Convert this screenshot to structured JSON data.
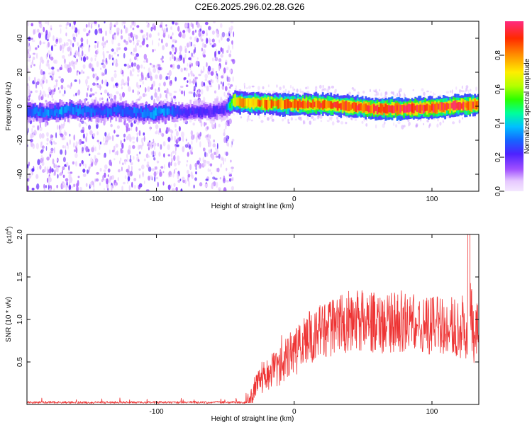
{
  "title": "C2E6.2025.296.02.28.G26",
  "chart_data": [
    {
      "type": "heatmap",
      "name": "spectrogram",
      "xlabel": "Height of straight line (km)",
      "ylabel": "Frequency (Hz)",
      "xlim": [
        -194,
        134
      ],
      "ylim": [
        -50,
        50
      ],
      "xticks": [
        -100,
        0,
        100
      ],
      "xtick_labels": [
        "-100",
        "0",
        "100"
      ],
      "yticks": [
        -40,
        -20,
        0,
        20,
        40
      ],
      "ytick_labels": [
        "-40",
        "-20",
        "0",
        "20",
        "40"
      ],
      "signal_band": [
        {
          "x": -190,
          "f": -3.0,
          "amp": 0.3
        },
        {
          "x": -180,
          "f": -4.0,
          "amp": 0.34
        },
        {
          "x": -170,
          "f": -3.0,
          "amp": 0.36
        },
        {
          "x": -160,
          "f": -2.0,
          "amp": 0.34
        },
        {
          "x": -150,
          "f": -3.0,
          "amp": 0.32
        },
        {
          "x": -140,
          "f": -3.0,
          "amp": 0.3
        },
        {
          "x": -130,
          "f": -2.5,
          "amp": 0.3
        },
        {
          "x": -120,
          "f": -3.0,
          "amp": 0.31
        },
        {
          "x": -110,
          "f": -4.0,
          "amp": 0.33
        },
        {
          "x": -100,
          "f": -4.0,
          "amp": 0.36
        },
        {
          "x": -92,
          "f": -3.0,
          "amp": 0.34
        },
        {
          "x": -80,
          "f": -3.5,
          "amp": 0.25
        },
        {
          "x": -60,
          "f": -2.5,
          "amp": 0.22
        },
        {
          "x": -50,
          "f": -2.0,
          "amp": 0.22
        },
        {
          "x": -44,
          "f": 3.0,
          "amp": 0.72
        },
        {
          "x": -35,
          "f": 2.0,
          "amp": 0.8
        },
        {
          "x": -20,
          "f": 1.5,
          "amp": 0.82
        },
        {
          "x": 0,
          "f": 1.0,
          "amp": 0.85
        },
        {
          "x": 20,
          "f": 1.0,
          "amp": 0.88
        },
        {
          "x": 40,
          "f": 0.0,
          "amp": 0.88
        },
        {
          "x": 60,
          "f": -1.5,
          "amp": 0.93
        },
        {
          "x": 80,
          "f": -1.5,
          "amp": 0.95
        },
        {
          "x": 100,
          "f": -1.0,
          "amp": 0.93
        },
        {
          "x": 115,
          "f": 0.0,
          "amp": 0.92
        },
        {
          "x": 134,
          "f": 1.0,
          "amp": 0.9
        }
      ],
      "colorbar": {
        "label": "Normalized spectral amplitude",
        "range": [
          0,
          1
        ],
        "ticks": [
          0.0,
          0.2,
          0.4,
          0.6,
          0.8
        ],
        "tick_labels": [
          "0.0",
          "0.2",
          "0.4",
          "0.6",
          "0.8"
        ]
      }
    },
    {
      "type": "line",
      "name": "snr",
      "xlabel": "Height of straight line (km)",
      "ylabel": "SNR (10 * v/v)",
      "multiplier_label": "(x10",
      "multiplier_exp": "4",
      "multiplier_close": ")",
      "xlim": [
        -194,
        134
      ],
      "ylim": [
        0,
        2.0
      ],
      "xticks": [
        -100,
        0,
        100
      ],
      "xtick_labels": [
        "-100",
        "0",
        "100"
      ],
      "yticks": [
        0.5,
        1.0,
        1.5,
        2.0
      ],
      "ytick_labels": [
        "0.5",
        "1.0",
        "1.5",
        "2.0"
      ],
      "series": [
        {
          "name": "SNR",
          "color": "#ee3333",
          "x": [
            -194,
            -150,
            -100,
            -60,
            -35,
            -32,
            -28,
            -24,
            -20,
            -15,
            -10,
            -5,
            0,
            5,
            10,
            15,
            20,
            25,
            30,
            35,
            40,
            45,
            50,
            55,
            60,
            65,
            70,
            75,
            80,
            85,
            90,
            95,
            100,
            105,
            110,
            115,
            120,
            125,
            128,
            130,
            134
          ],
          "y": [
            0.01,
            0.01,
            0.01,
            0.01,
            0.01,
            0.05,
            0.2,
            0.3,
            0.35,
            0.42,
            0.45,
            0.55,
            0.6,
            0.68,
            0.78,
            0.8,
            0.85,
            0.9,
            0.92,
            0.95,
            0.98,
            0.98,
            1.0,
            0.97,
            0.95,
            0.95,
            0.95,
            0.97,
            0.98,
            0.95,
            0.95,
            0.93,
            0.92,
            0.92,
            0.93,
            0.92,
            0.88,
            0.85,
            1.2,
            0.8,
            0.9
          ]
        }
      ]
    }
  ]
}
